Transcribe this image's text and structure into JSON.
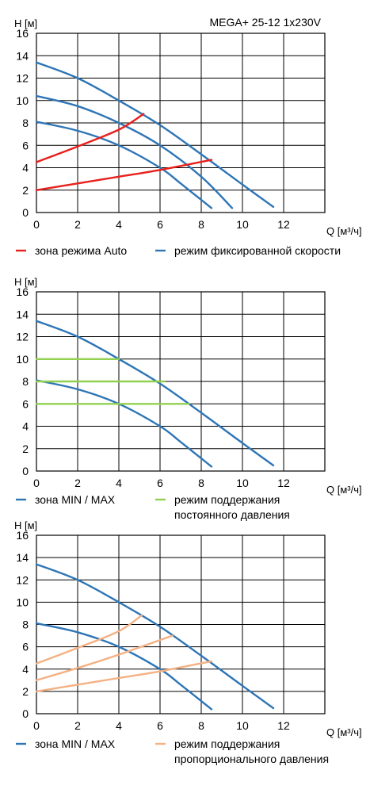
{
  "colors": {
    "fixed_speed": "#2e75b6",
    "auto_zone": "#e8201c",
    "constant_pressure": "#92d050",
    "proportional_pressure": "#f4b183",
    "grid": "#000000"
  },
  "chart_data": [
    {
      "type": "line",
      "title": "MEGA+ 25-12 1x230V",
      "xlabel": "Q [м³/ч]",
      "ylabel": "H [м]",
      "xlim": [
        0,
        14
      ],
      "ylim": [
        0,
        16
      ],
      "xticks": [
        "0",
        "2",
        "4",
        "6",
        "8",
        "10",
        "12"
      ],
      "yticks": [
        "0",
        "2",
        "4",
        "6",
        "8",
        "10",
        "12",
        "14",
        "16"
      ],
      "grid": true,
      "legend": "bottom",
      "legend_items": [
        {
          "label": "зона режима Auto",
          "color_key": "auto_zone"
        },
        {
          "label": "режим фиксированной скорости",
          "color_key": "fixed_speed"
        }
      ],
      "series": [
        {
          "name": "режим фиксированной скорости",
          "color_key": "fixed_speed",
          "points": [
            [
              0,
              13.4
            ],
            [
              2,
              12.0
            ],
            [
              4,
              10.0
            ],
            [
              6,
              7.8
            ],
            [
              8,
              5.2
            ],
            [
              10,
              2.5
            ],
            [
              11.5,
              0.5
            ]
          ]
        },
        {
          "color_key": "fixed_speed",
          "points": [
            [
              0,
              10.4
            ],
            [
              2,
              9.5
            ],
            [
              4,
              8.0
            ],
            [
              6,
              6.0
            ],
            [
              8,
              3.2
            ],
            [
              9.5,
              0.4
            ]
          ]
        },
        {
          "color_key": "fixed_speed",
          "points": [
            [
              0,
              8.1
            ],
            [
              2,
              7.3
            ],
            [
              4,
              6.0
            ],
            [
              6,
              4.0
            ],
            [
              7,
              2.6
            ],
            [
              8.5,
              0.4
            ]
          ]
        },
        {
          "name": "зона режима Auto",
          "color_key": "auto_zone",
          "points": [
            [
              0,
              4.5
            ],
            [
              2,
              5.9
            ],
            [
              4,
              7.4
            ],
            [
              5.2,
              8.8
            ]
          ]
        },
        {
          "color_key": "auto_zone",
          "points": [
            [
              0,
              2.0
            ],
            [
              2,
              2.6
            ],
            [
              4,
              3.2
            ],
            [
              6,
              3.8
            ],
            [
              8.5,
              4.7
            ]
          ]
        }
      ]
    },
    {
      "type": "line",
      "title": "",
      "xlabel": "Q [м³/ч]",
      "ylabel": "H [м]",
      "xlim": [
        0,
        14
      ],
      "ylim": [
        0,
        16
      ],
      "xticks": [
        "0",
        "2",
        "4",
        "6",
        "8",
        "10",
        "12"
      ],
      "yticks": [
        "0",
        "2",
        "4",
        "6",
        "8",
        "10",
        "12",
        "14",
        "16"
      ],
      "grid": true,
      "legend": "bottom",
      "legend_items": [
        {
          "label": "зона MIN / MAX",
          "color_key": "fixed_speed"
        },
        {
          "label": "режим поддержания",
          "label2": "постоянного давления",
          "color_key": "constant_pressure"
        }
      ],
      "series": [
        {
          "name": "зона MIN / MAX",
          "color_key": "fixed_speed",
          "points": [
            [
              0,
              13.4
            ],
            [
              2,
              12.0
            ],
            [
              4,
              10.0
            ],
            [
              6,
              7.8
            ],
            [
              8,
              5.2
            ],
            [
              10,
              2.5
            ],
            [
              11.5,
              0.5
            ]
          ]
        },
        {
          "color_key": "fixed_speed",
          "points": [
            [
              0,
              8.1
            ],
            [
              2,
              7.3
            ],
            [
              4,
              6.0
            ],
            [
              6,
              4.0
            ],
            [
              7,
              2.6
            ],
            [
              8.5,
              0.4
            ]
          ]
        },
        {
          "name": "режим поддержания постоянного давления",
          "color_key": "constant_pressure",
          "points": [
            [
              0,
              10
            ],
            [
              4,
              10
            ]
          ]
        },
        {
          "color_key": "constant_pressure",
          "points": [
            [
              0,
              8
            ],
            [
              6.2,
              8
            ]
          ]
        },
        {
          "color_key": "constant_pressure",
          "points": [
            [
              0,
              6
            ],
            [
              7.4,
              6
            ]
          ]
        }
      ]
    },
    {
      "type": "line",
      "title": "",
      "xlabel": "Q [м³/ч]",
      "ylabel": "H [м]",
      "xlim": [
        0,
        14
      ],
      "ylim": [
        0,
        16
      ],
      "xticks": [
        "0",
        "2",
        "4",
        "6",
        "8",
        "10",
        "12"
      ],
      "yticks": [
        "0",
        "2",
        "4",
        "6",
        "8",
        "10",
        "12",
        "14",
        "16"
      ],
      "grid": true,
      "legend": "bottom",
      "legend_items": [
        {
          "label": "зона MIN / MAX",
          "color_key": "fixed_speed"
        },
        {
          "label": "режим поддержания",
          "label2": "пропорционального давления",
          "color_key": "proportional_pressure"
        }
      ],
      "series": [
        {
          "name": "зона MIN / MAX",
          "color_key": "fixed_speed",
          "points": [
            [
              0,
              13.4
            ],
            [
              2,
              12.0
            ],
            [
              4,
              10.0
            ],
            [
              6,
              7.8
            ],
            [
              8,
              5.2
            ],
            [
              10,
              2.5
            ],
            [
              11.5,
              0.5
            ]
          ]
        },
        {
          "color_key": "fixed_speed",
          "points": [
            [
              0,
              8.1
            ],
            [
              2,
              7.3
            ],
            [
              4,
              6.0
            ],
            [
              6,
              4.0
            ],
            [
              7,
              2.6
            ],
            [
              8.5,
              0.4
            ]
          ]
        },
        {
          "name": "режим поддержания пропорционального давления",
          "color_key": "proportional_pressure",
          "points": [
            [
              0,
              4.5
            ],
            [
              2,
              5.9
            ],
            [
              4,
              7.4
            ],
            [
              5.1,
              8.8
            ]
          ]
        },
        {
          "color_key": "proportional_pressure",
          "points": [
            [
              0,
              3.0
            ],
            [
              2,
              4.1
            ],
            [
              4,
              5.3
            ],
            [
              6.6,
              7.0
            ]
          ]
        },
        {
          "color_key": "proportional_pressure",
          "points": [
            [
              0,
              2.0
            ],
            [
              2,
              2.6
            ],
            [
              4,
              3.2
            ],
            [
              6,
              3.8
            ],
            [
              8.5,
              4.7
            ]
          ]
        }
      ]
    }
  ]
}
